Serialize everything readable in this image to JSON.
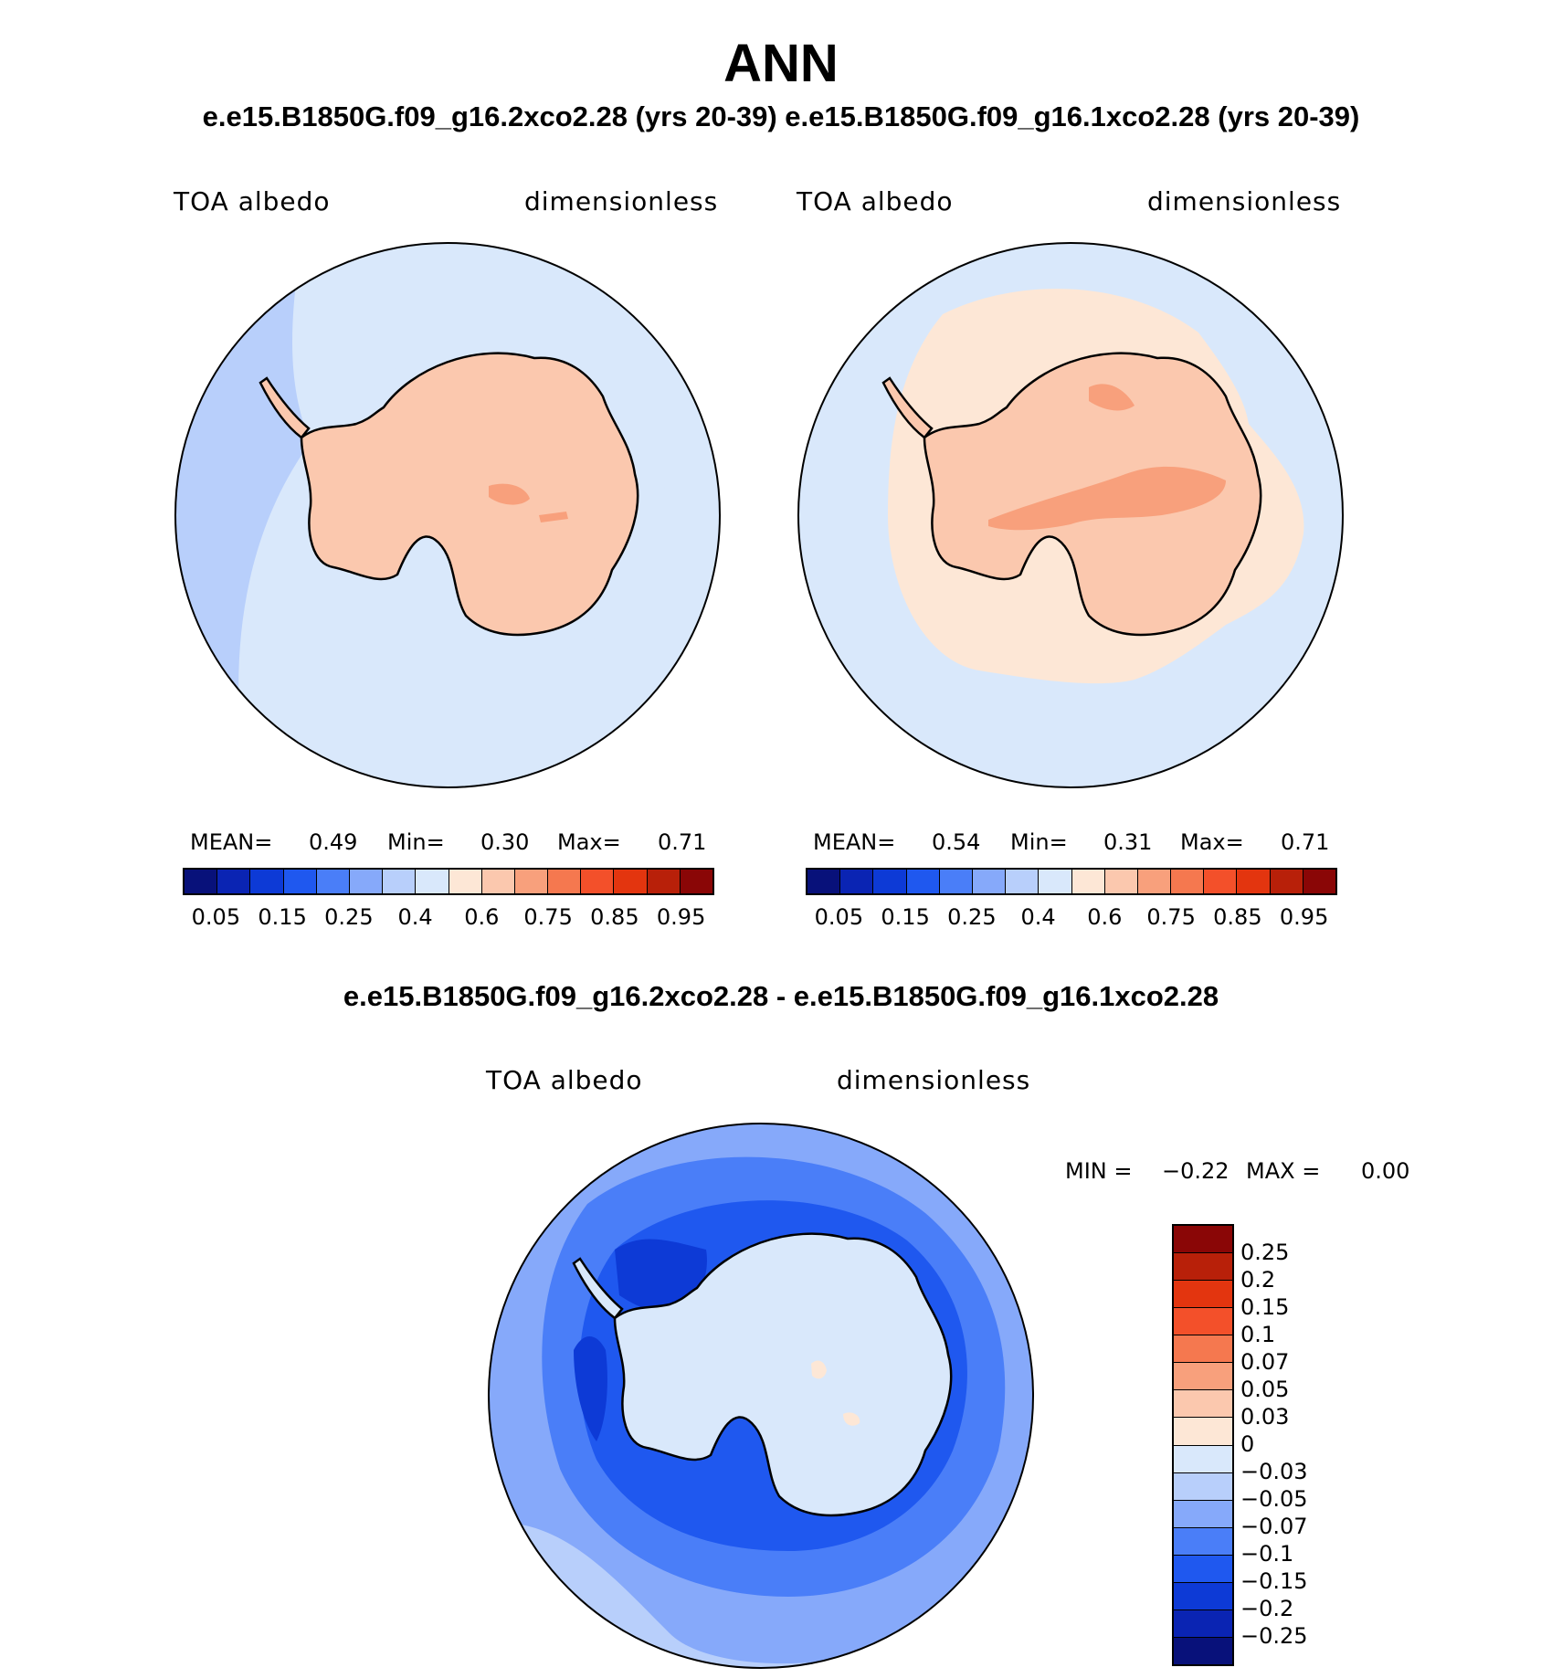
{
  "title": "ANN",
  "subtitle_top": "e.e15.B1850G.f09_g16.2xco2.28 (yrs 20-39) e.e15.B1850G.f09_g16.1xco2.28 (yrs 20-39)",
  "subtitle_diff": "e.e15.B1850G.f09_g16.2xco2.28 - e.e15.B1850G.f09_g16.1xco2.28",
  "panels": [
    {
      "variable": "TOA albedo",
      "units": "dimensionless",
      "stats": {
        "mean_label": "MEAN=",
        "mean": "0.49",
        "min_label": "Min=",
        "min": "0.30",
        "max_label": "Max=",
        "max": "0.71"
      }
    },
    {
      "variable": "TOA albedo",
      "units": "dimensionless",
      "stats": {
        "mean_label": "MEAN=",
        "mean": "0.54",
        "min_label": "Min=",
        "min": "0.31",
        "max_label": "Max=",
        "max": "0.71"
      }
    }
  ],
  "diff_panel": {
    "variable": "TOA albedo",
    "units": "dimensionless",
    "stats": {
      "min_label": "MIN =",
      "min": "−0.22",
      "max_label": "MAX =",
      "max": "0.00"
    }
  },
  "colorbar_abs": {
    "colors": [
      "#08117a",
      "#0a24b3",
      "#0d3ad6",
      "#1f58ef",
      "#4a7ef8",
      "#86a9fa",
      "#b8cffb",
      "#d9e8fb",
      "#fde7d6",
      "#fbc8ae",
      "#f8a07c",
      "#f5784f",
      "#f3502a",
      "#e3350f",
      "#b82009",
      "#8a0606"
    ],
    "tick_labels": [
      "0.05",
      "0.15",
      "0.25",
      "0.4",
      "0.6",
      "0.75",
      "0.85",
      "0.95"
    ]
  },
  "colorbar_diff": {
    "colors_top_to_bottom": [
      "#8a0606",
      "#b82009",
      "#e3350f",
      "#f3502a",
      "#f5784f",
      "#f8a07c",
      "#fbc8ae",
      "#fde7d6",
      "#d9e8fb",
      "#b8cffb",
      "#86a9fa",
      "#4a7ef8",
      "#1f58ef",
      "#0d3ad6",
      "#0a24b3",
      "#08117a"
    ],
    "tick_labels": [
      "0.25",
      "0.2",
      "0.15",
      "0.1",
      "0.07",
      "0.05",
      "0.03",
      "0",
      "−0.03",
      "−0.05",
      "−0.07",
      "−0.1",
      "−0.15",
      "−0.2",
      "−0.25"
    ]
  },
  "map_colors": {
    "ocean_outer": "#b8cffb",
    "ocean_light": "#d9e8fb",
    "land_abs": "#fbc8ae",
    "land_high": "#f8a07c",
    "sea_ice_light": "#fde7d6",
    "diff_outer": "#86a9fa",
    "diff_mid": "#4a7ef8",
    "diff_strong": "#1f58ef",
    "diff_stronger": "#0d3ad6",
    "diff_land": "#d9e8fb",
    "diff_pos": "#fde7d6"
  }
}
